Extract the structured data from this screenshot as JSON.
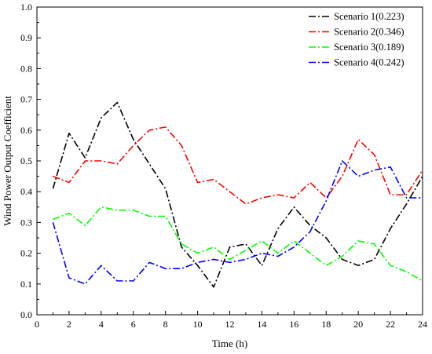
{
  "chart_data": {
    "type": "line",
    "title": "",
    "xlabel": "Time (h)",
    "ylabel": "Wind Power Output Coefficient",
    "xlim": [
      0,
      24
    ],
    "ylim": [
      0,
      1.0
    ],
    "x_ticks": [
      "0",
      "2",
      "4",
      "6",
      "8",
      "10",
      "12",
      "14",
      "16",
      "18",
      "20",
      "22",
      "24"
    ],
    "y_ticks": [
      "0.0",
      "0.1",
      "0.2",
      "0.3",
      "0.4",
      "0.5",
      "0.6",
      "0.7",
      "0.8",
      "0.9",
      "1.0"
    ],
    "grid": false,
    "legend_position": "top-right",
    "line_style": "dash-dot",
    "x": [
      1,
      2,
      3,
      4,
      5,
      6,
      7,
      8,
      9,
      10,
      11,
      12,
      13,
      14,
      15,
      16,
      17,
      18,
      19,
      20,
      21,
      22,
      23,
      24
    ],
    "series": [
      {
        "name": "Scenario 1(0.223)",
        "color": "#000000",
        "values": [
          0.41,
          0.59,
          0.51,
          0.64,
          0.69,
          0.57,
          0.49,
          0.41,
          0.22,
          0.16,
          0.09,
          0.22,
          0.23,
          0.16,
          0.28,
          0.35,
          0.29,
          0.25,
          0.18,
          0.16,
          0.18,
          0.28,
          0.36,
          0.45
        ]
      },
      {
        "name": "Scenario 2(0.346)",
        "color": "#ff0000",
        "values": [
          0.45,
          0.43,
          0.5,
          0.5,
          0.49,
          0.55,
          0.6,
          0.61,
          0.55,
          0.43,
          0.44,
          0.4,
          0.36,
          0.38,
          0.39,
          0.38,
          0.43,
          0.38,
          0.45,
          0.57,
          0.52,
          0.39,
          0.39,
          0.47
        ]
      },
      {
        "name": "Scenario 3(0.189)",
        "color": "#00ff00",
        "values": [
          0.31,
          0.33,
          0.29,
          0.35,
          0.34,
          0.34,
          0.32,
          0.32,
          0.23,
          0.2,
          0.22,
          0.18,
          0.21,
          0.24,
          0.2,
          0.24,
          0.2,
          0.16,
          0.19,
          0.24,
          0.23,
          0.16,
          0.14,
          0.11
        ]
      },
      {
        "name": "Scenario 4(0.242)",
        "color": "#0000ff",
        "values": [
          0.3,
          0.12,
          0.1,
          0.16,
          0.11,
          0.11,
          0.17,
          0.15,
          0.15,
          0.17,
          0.18,
          0.17,
          0.18,
          0.2,
          0.19,
          0.22,
          0.27,
          0.37,
          0.5,
          0.45,
          0.47,
          0.48,
          0.38,
          0.38
        ]
      }
    ]
  }
}
